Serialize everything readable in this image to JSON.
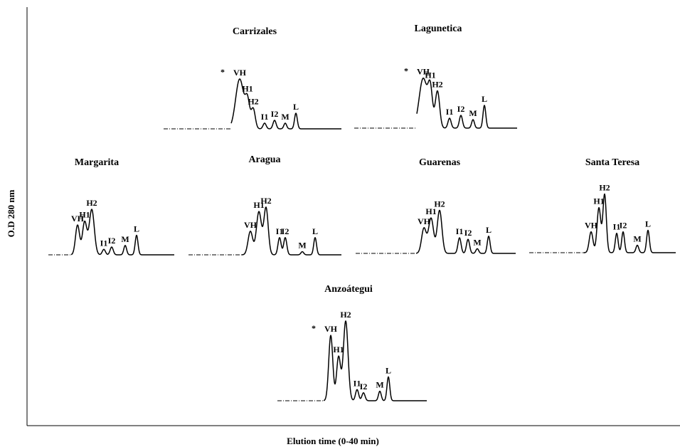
{
  "chart_data": {
    "type": "line",
    "xlabel": "Elution time (0-40 min)",
    "ylabel": "O.D 280 nm",
    "panels": [
      {
        "title": "Carrizales",
        "peaks": [
          {
            "label": "VH",
            "marked": true,
            "height": 0.7,
            "width": 2.6
          },
          {
            "label": "H1",
            "height": 0.36,
            "width": 1.4
          },
          {
            "label": "H2",
            "height": 0.28,
            "width": 1.3
          },
          {
            "label": "I1",
            "height": 0.08,
            "width": 1.0
          },
          {
            "label": "I2",
            "height": 0.12,
            "width": 1.0
          },
          {
            "label": "M",
            "height": 0.08,
            "width": 0.9
          },
          {
            "label": "L",
            "height": 0.22,
            "width": 0.9
          }
        ]
      },
      {
        "title": "Lagunetica",
        "peaks": [
          {
            "label": "VH",
            "marked": true,
            "height": 0.7,
            "width": 2.6
          },
          {
            "label": "H1",
            "height": 0.5,
            "width": 1.4
          },
          {
            "label": "H2",
            "height": 0.52,
            "width": 1.4
          },
          {
            "label": "I1",
            "height": 0.14,
            "width": 1.0
          },
          {
            "label": "I2",
            "height": 0.18,
            "width": 1.0
          },
          {
            "label": "M",
            "height": 0.12,
            "width": 0.9
          },
          {
            "label": "L",
            "height": 0.32,
            "width": 0.9
          }
        ]
      },
      {
        "title": "Margarita",
        "peaks": [
          {
            "label": "VH",
            "height": 0.38,
            "width": 1.3
          },
          {
            "label": "H1",
            "height": 0.42,
            "width": 1.4
          },
          {
            "label": "H2",
            "height": 0.58,
            "width": 1.6
          },
          {
            "label": "I1",
            "height": 0.07,
            "width": 1.0
          },
          {
            "label": "I2",
            "height": 0.1,
            "width": 1.0
          },
          {
            "label": "M",
            "height": 0.12,
            "width": 0.9
          },
          {
            "label": "L",
            "height": 0.25,
            "width": 0.9
          }
        ]
      },
      {
        "title": "Aragua",
        "peaks": [
          {
            "label": "VH",
            "height": 0.3,
            "width": 1.5
          },
          {
            "label": "H1",
            "height": 0.55,
            "width": 1.6
          },
          {
            "label": "H2",
            "height": 0.6,
            "width": 1.4
          },
          {
            "label": "I1",
            "height": 0.22,
            "width": 1.0
          },
          {
            "label": "I2",
            "height": 0.22,
            "width": 1.0
          },
          {
            "label": "M",
            "height": 0.04,
            "width": 0.9
          },
          {
            "label": "L",
            "height": 0.22,
            "width": 0.9
          }
        ]
      },
      {
        "title": "Guarenas",
        "peaks": [
          {
            "label": "VH",
            "height": 0.32,
            "width": 1.5
          },
          {
            "label": "H1",
            "height": 0.45,
            "width": 1.6
          },
          {
            "label": "H2",
            "height": 0.55,
            "width": 1.5
          },
          {
            "label": "I1",
            "height": 0.2,
            "width": 1.0
          },
          {
            "label": "I2",
            "height": 0.18,
            "width": 1.0
          },
          {
            "label": "M",
            "height": 0.06,
            "width": 0.9
          },
          {
            "label": "L",
            "height": 0.22,
            "width": 0.9
          }
        ]
      },
      {
        "title": "Santa Teresa",
        "peaks": [
          {
            "label": "VH",
            "height": 0.28,
            "width": 1.2
          },
          {
            "label": "H1",
            "height": 0.6,
            "width": 1.2
          },
          {
            "label": "H2",
            "height": 0.78,
            "width": 1.1
          },
          {
            "label": "I1",
            "height": 0.26,
            "width": 0.9
          },
          {
            "label": "I2",
            "height": 0.28,
            "width": 0.9
          },
          {
            "label": "M",
            "height": 0.1,
            "width": 0.9
          },
          {
            "label": "L",
            "height": 0.3,
            "width": 0.9
          }
        ]
      },
      {
        "title": "Anzoátegui",
        "peaks": [
          {
            "label": "VH",
            "marked": true,
            "height": 0.82,
            "width": 1.3
          },
          {
            "label": "H1",
            "height": 0.55,
            "width": 1.3
          },
          {
            "label": "H2",
            "height": 1.0,
            "width": 1.5
          },
          {
            "label": "I1",
            "height": 0.14,
            "width": 1.0
          },
          {
            "label": "I2",
            "height": 0.1,
            "width": 1.0
          },
          {
            "label": "M",
            "height": 0.12,
            "width": 0.9
          },
          {
            "label": "L",
            "height": 0.3,
            "width": 0.9
          }
        ]
      }
    ]
  },
  "marker_symbol": "*",
  "colors": {
    "line": "#000000",
    "background": "#ffffff"
  }
}
